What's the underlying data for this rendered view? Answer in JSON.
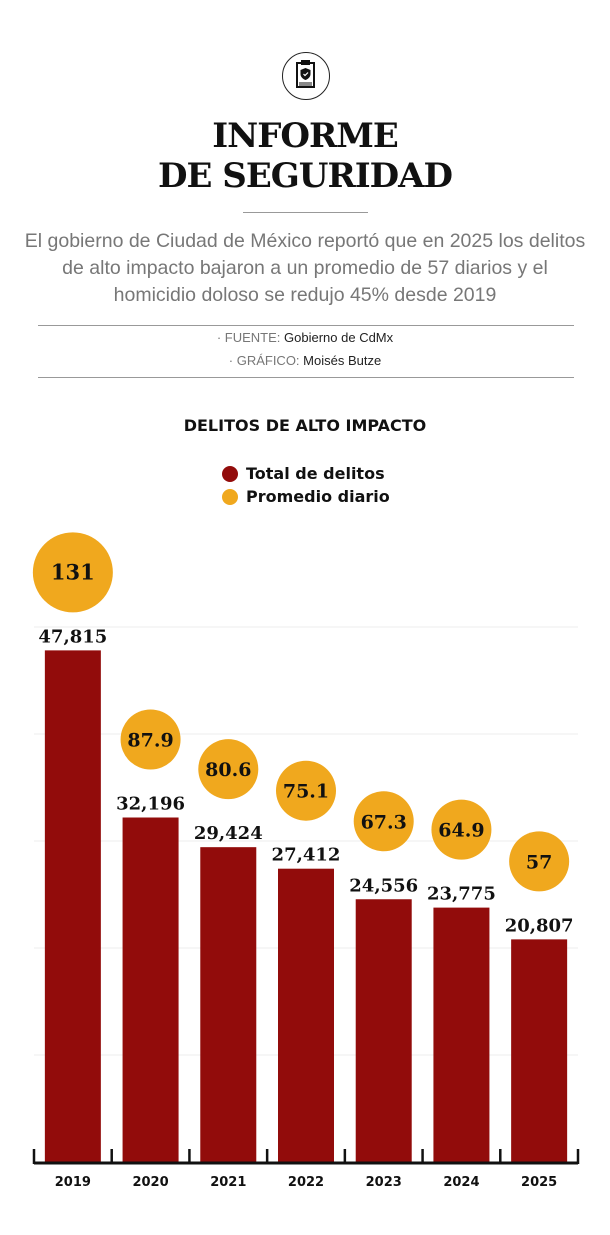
{
  "header": {
    "icon": "clipboard-shield-icon",
    "title_line1": "INFORME",
    "title_line2": "DE SEGURIDAD",
    "subtitle": "El gobierno de Ciudad de México reportó que en 2025 los delitos de alto impacto bajaron a un promedio de 57 diarios y el homicidio doloso se redujo 45% desde 2019",
    "source_label": "· FUENTE:",
    "source": "Gobierno de CdMx",
    "graphic_label": "· GRÁFICO:",
    "graphic": "Moisés Butze"
  },
  "chart_data": {
    "type": "bar",
    "title": "DELITOS DE ALTO IMPACTO",
    "categories": [
      "2019",
      "2020",
      "2021",
      "2022",
      "2023",
      "2024",
      "2025"
    ],
    "series": [
      {
        "name": "Total de delitos",
        "color": "#920c0b",
        "values": [
          47815,
          32196,
          29424,
          27412,
          24556,
          23775,
          20807
        ],
        "labels": [
          "47,815",
          "32,196",
          "29,424",
          "27,412",
          "24,556",
          "23,775",
          "20,807"
        ]
      },
      {
        "name": "Promedio diario",
        "color": "#f0a81e",
        "values": [
          131,
          87.9,
          80.6,
          75.1,
          67.3,
          64.9,
          57
        ],
        "labels": [
          "131",
          "87.9",
          "80.6",
          "75.1",
          "67.3",
          "64.9",
          "57"
        ]
      }
    ],
    "ylim": [
      0,
      50000
    ],
    "grid": true,
    "legend": "top-center"
  }
}
